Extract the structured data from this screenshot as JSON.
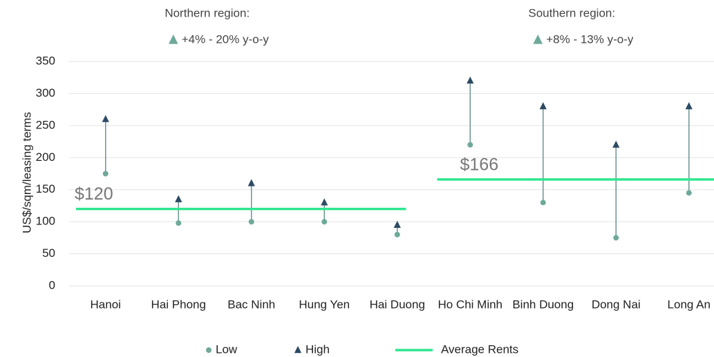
{
  "chart_data": {
    "type": "range",
    "y_label": "US$/sqm/leasing terms",
    "ylim": [
      0,
      350
    ],
    "yticks": [
      0,
      50,
      100,
      150,
      200,
      250,
      300,
      350
    ],
    "grid": true,
    "series": [
      {
        "name": "Low",
        "color": "#6fa99a"
      },
      {
        "name": "High",
        "color": "#2c4a63"
      },
      {
        "name": "Average Rents",
        "color": "#2ee68f"
      }
    ],
    "groups": [
      {
        "title": "Northern region:",
        "change": "+4% - 20% y-o-y",
        "categories": [
          "Hanoi",
          "Hai Phong",
          "Bac Ninh",
          "Hung Yen",
          "Hai Duong"
        ],
        "low": [
          175,
          98,
          100,
          100,
          80
        ],
        "high": [
          260,
          135,
          160,
          130,
          95
        ],
        "average": 120,
        "average_label": "$120"
      },
      {
        "title": "Southern region:",
        "change": "+8% - 13% y-o-y",
        "categories": [
          "Ho Chi Minh",
          "Binh Duong",
          "Dong Nai",
          "Long An"
        ],
        "low": [
          220,
          130,
          75,
          145
        ],
        "high": [
          320,
          280,
          220,
          280
        ],
        "average": 166,
        "average_label": "$166"
      }
    ]
  }
}
